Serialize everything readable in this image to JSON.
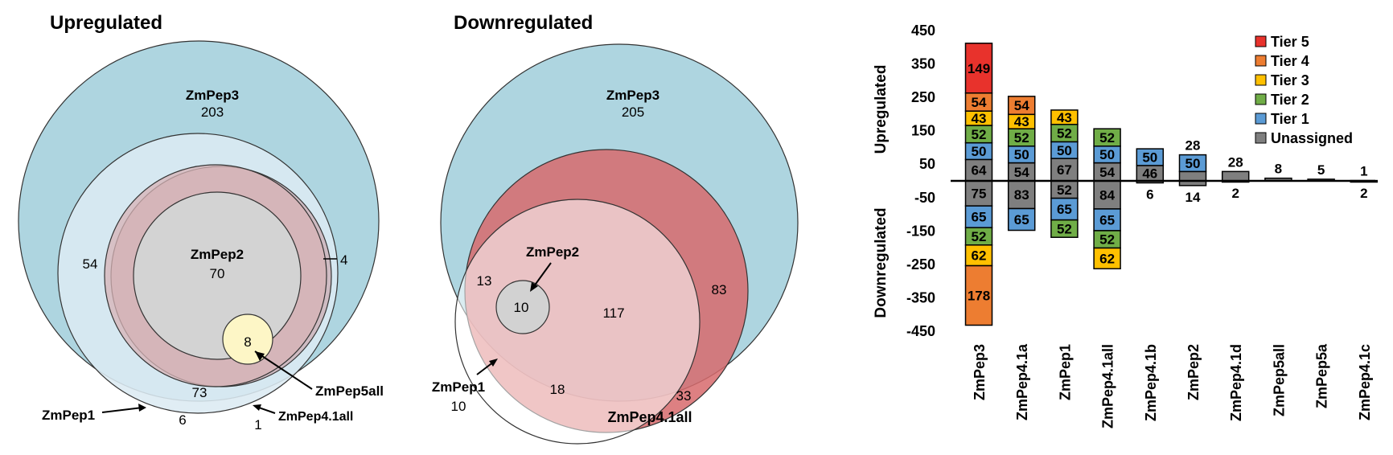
{
  "venn_up": {
    "title": "Upregulated",
    "labels": {
      "zmpep3": "ZmPep3",
      "zmpep2": "ZmPep2",
      "zmpep1": "ZmPep1",
      "zmpep5all": "ZmPep5all",
      "zmpep41all": "ZmPep4.1all"
    },
    "counts": {
      "pep3_only": "203",
      "pep2": "70",
      "pep1_pep3": "54",
      "pep41_pep3": "73",
      "pep5all": "8",
      "pep41_only": "4",
      "pep1_only": "6",
      "pep1_pep41": "1"
    }
  },
  "venn_down": {
    "title": "Downregulated",
    "labels": {
      "zmpep3": "ZmPep3",
      "zmpep2": "ZmPep2",
      "zmpep1": "ZmPep1",
      "zmpep41all": "ZmPep4.1all"
    },
    "counts": {
      "pep3_only": "205",
      "pep2": "10",
      "pep1_pep3": "13",
      "pep3_pep41": "117",
      "pep3_pep41_right": "83",
      "pep1_only": "10",
      "pep1_pep41": "18",
      "pep41_only": "33"
    }
  },
  "chart_data": {
    "type": "bar",
    "stacked": true,
    "diverging": true,
    "categories": [
      "ZmPep3",
      "ZmPep4.1a",
      "ZmPep1",
      "ZmPep4.1all",
      "ZmPep4.1b",
      "ZmPep2",
      "ZmPep4.1d",
      "ZmPep5all",
      "ZmPep5a",
      "ZmPep4.1c"
    ],
    "ylim": [
      -450,
      450
    ],
    "yticks": [
      450,
      350,
      250,
      150,
      50,
      -50,
      -150,
      -250,
      -350,
      -450
    ],
    "ylabel_up": "Upregulated",
    "ylabel_down": "Downregulated",
    "legend_position": "top-right",
    "series": [
      {
        "name": "Unassigned",
        "color": "#7f7f7f",
        "up": [
          64,
          54,
          67,
          54,
          46,
          28,
          28,
          8,
          5,
          1
        ],
        "down": [
          75,
          83,
          52,
          84,
          6,
          14,
          2,
          0,
          0,
          2
        ]
      },
      {
        "name": "Tier 1",
        "color": "#5b9bd5",
        "up": [
          50,
          50,
          50,
          50,
          50,
          50,
          0,
          0,
          0,
          0
        ],
        "down": [
          65,
          65,
          65,
          65,
          0,
          0,
          0,
          0,
          0,
          0
        ]
      },
      {
        "name": "Tier 2",
        "color": "#70ad47",
        "up": [
          52,
          52,
          52,
          52,
          0,
          0,
          0,
          0,
          0,
          0
        ],
        "down": [
          52,
          0,
          52,
          52,
          0,
          0,
          0,
          0,
          0,
          0
        ]
      },
      {
        "name": "Tier 3",
        "color": "#ffc000",
        "up": [
          43,
          43,
          43,
          0,
          0,
          0,
          0,
          0,
          0,
          0
        ],
        "down": [
          62,
          0,
          0,
          62,
          0,
          0,
          0,
          0,
          0,
          0
        ]
      },
      {
        "name": "Tier 4",
        "color": "#ed7d31",
        "up": [
          54,
          54,
          0,
          0,
          0,
          0,
          0,
          0,
          0,
          0
        ],
        "down": [
          178,
          0,
          0,
          0,
          0,
          0,
          0,
          0,
          0,
          0
        ]
      },
      {
        "name": "Tier 5",
        "color": "#e8322c",
        "up": [
          149,
          0,
          0,
          0,
          0,
          0,
          0,
          0,
          0,
          0
        ],
        "down": [
          0,
          0,
          0,
          0,
          0,
          0,
          0,
          0,
          0,
          0
        ]
      }
    ],
    "legend_order": [
      "Tier 5",
      "Tier 4",
      "Tier 3",
      "Tier 2",
      "Tier 1",
      "Unassigned"
    ]
  }
}
